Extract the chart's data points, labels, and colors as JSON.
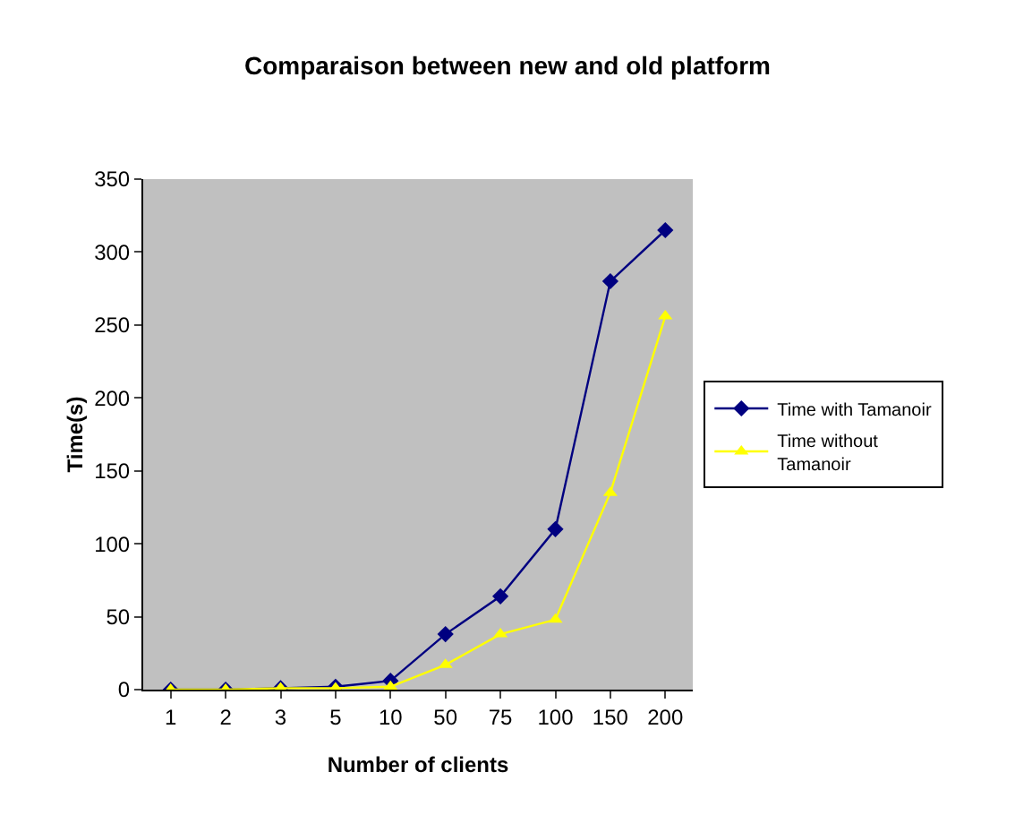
{
  "chart_data": {
    "type": "line",
    "title": "Comparaison between new and old platform",
    "xlabel": "Number of clients",
    "ylabel": "Time(s)",
    "categories": [
      "1",
      "2",
      "3",
      "5",
      "10",
      "50",
      "75",
      "100",
      "150",
      "200"
    ],
    "series": [
      {
        "name": "Time with Tamanoir",
        "color": "#000080",
        "marker": "diamond",
        "values": [
          0,
          0,
          1,
          2,
          6,
          38,
          64,
          110,
          280,
          315
        ]
      },
      {
        "name": "Time without Tamanoir",
        "color": "#ffff00",
        "marker": "triangle",
        "values": [
          0,
          0,
          1,
          1,
          2,
          17,
          38,
          48,
          135,
          256
        ]
      }
    ],
    "ylim": [
      0,
      350
    ],
    "yticks": [
      0,
      50,
      100,
      150,
      200,
      250,
      300,
      350
    ],
    "grid": false,
    "legend": "right"
  }
}
